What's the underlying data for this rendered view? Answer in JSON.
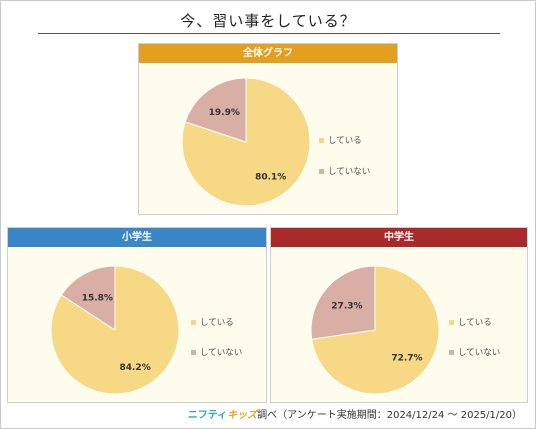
{
  "title": "今、習い事をしている？",
  "footer": {
    "brand_part1": "ニフティ",
    "brand_part2": "キッズ",
    "note": "調べ（アンケート実施期間：2024/12/24 ～ 2025/1/20）"
  },
  "colors": {
    "doing": "#f7d985",
    "not_doing": "#d9aea4"
  },
  "chart_data": [
    {
      "type": "pie",
      "title": "全体グラフ",
      "header_color": "#e3a01e",
      "labels": [
        "している",
        "していない"
      ],
      "values": [
        80.1,
        19.9
      ],
      "value_labels": [
        "80.1%",
        "19.9%"
      ],
      "legend": [
        "している",
        "していない"
      ],
      "legend_position": "right"
    },
    {
      "type": "pie",
      "title": "小学生",
      "header_color": "#3b86c6",
      "labels": [
        "している",
        "していない"
      ],
      "values": [
        84.2,
        15.8
      ],
      "value_labels": [
        "84.2%",
        "15.8%"
      ],
      "legend": [
        "している",
        "していない"
      ],
      "legend_position": "right"
    },
    {
      "type": "pie",
      "title": "中学生",
      "header_color": "#a82a2a",
      "labels": [
        "している",
        "していない"
      ],
      "values": [
        72.7,
        27.3
      ],
      "value_labels": [
        "72.7%",
        "27.3%"
      ],
      "legend": [
        "している",
        "していない"
      ],
      "legend_position": "right"
    }
  ]
}
